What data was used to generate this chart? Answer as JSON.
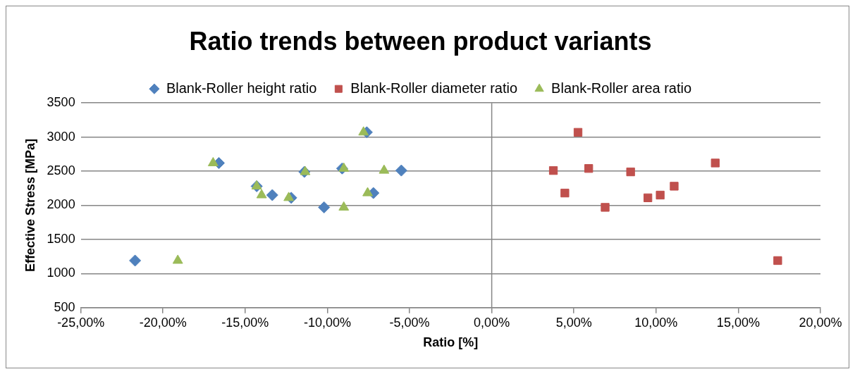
{
  "chart_data": {
    "type": "scatter",
    "title": "Ratio trends between product variants",
    "xlabel": "Ratio [%]",
    "ylabel": "Effective Stress [MPa]",
    "xlim": [
      -25,
      20
    ],
    "xticks": [
      {
        "value": -25,
        "label": "-25,00%"
      },
      {
        "value": -20,
        "label": "-20,00%"
      },
      {
        "value": -15,
        "label": "-15,00%"
      },
      {
        "value": -10,
        "label": "-10,00%"
      },
      {
        "value": -5,
        "label": "-5,00%"
      },
      {
        "value": 0,
        "label": "0,00%"
      },
      {
        "value": 5,
        "label": "5,00%"
      },
      {
        "value": 10,
        "label": "10,00%"
      },
      {
        "value": 15,
        "label": "15,00%"
      },
      {
        "value": 20,
        "label": "20,00%"
      }
    ],
    "ylim": [
      500,
      3500
    ],
    "yticks": [
      500,
      1000,
      1500,
      2000,
      2500,
      3000,
      3500
    ],
    "grid": "y",
    "legend": "top",
    "ref_lines": [
      {
        "axis": "x",
        "value": 0,
        "color": "#868686"
      }
    ],
    "series": [
      {
        "name": "Blank-Roller height ratio",
        "color": "#4f81bd",
        "marker": "diamond",
        "x": [
          -21.7,
          -16.6,
          -14.3,
          -13.35,
          -12.2,
          -11.4,
          -10.2,
          -9.1,
          -7.6,
          -7.2,
          -5.5
        ],
        "values": [
          1190,
          2620,
          2280,
          2150,
          2110,
          2490,
          1970,
          2540,
          3070,
          2180,
          2510
        ]
      },
      {
        "name": "Blank-Roller diameter ratio",
        "color": "#c0504d",
        "marker": "square",
        "x": [
          17.4,
          13.6,
          11.1,
          10.25,
          9.5,
          8.45,
          6.9,
          5.9,
          5.25,
          4.45,
          3.75
        ],
        "values": [
          1190,
          2620,
          2280,
          2150,
          2110,
          2490,
          1970,
          2540,
          3070,
          2180,
          2510
        ]
      },
      {
        "name": "Blank-Roller area ratio",
        "color": "#9bbb59",
        "marker": "triangle",
        "x": [
          -19.1,
          -16.95,
          -14.3,
          -14.0,
          -12.35,
          -11.35,
          -9.0,
          -9.0,
          -7.8,
          -7.55,
          -6.55
        ],
        "values": [
          1190,
          2620,
          2280,
          2150,
          2110,
          2490,
          1970,
          2540,
          3070,
          2180,
          2510
        ]
      }
    ]
  }
}
